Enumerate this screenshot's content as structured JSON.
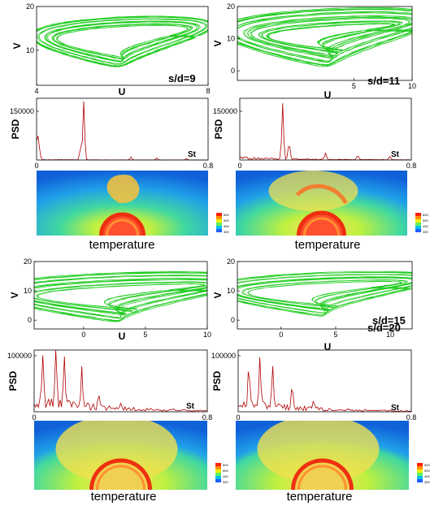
{
  "chart_data": [
    {
      "case": "s/d=9",
      "phase": {
        "type": "line",
        "xlabel": "U",
        "ylabel": "V",
        "xlim": [
          4,
          8
        ],
        "ylim": [
          2,
          20
        ],
        "xticks": [
          "4",
          "8"
        ],
        "yticks": [
          "10",
          "20"
        ],
        "center": [
          6.0,
          12.0
        ],
        "rx": 1.45,
        "ry": 5.0,
        "skew": 0.45,
        "loops": 20,
        "spread": 0.25
      },
      "psd": {
        "type": "line",
        "xlabel": "St",
        "ylabel": "PSD",
        "xlim": [
          0,
          0.8
        ],
        "ylim": [
          0,
          190000
        ],
        "xticks": [
          "0",
          "0.8"
        ],
        "yticks": [
          "150000"
        ],
        "peaks": [
          [
            0.005,
            75000
          ],
          [
            0.22,
            180000
          ],
          [
            0.205,
            40000
          ],
          [
            0.44,
            9000
          ],
          [
            0.56,
            6000
          ],
          [
            0.7,
            4000
          ]
        ],
        "noise": 1200
      },
      "field": {
        "label": "temperature",
        "legend": [
          "600",
          "500",
          "400",
          "300"
        ],
        "hot": 0.35,
        "plume": "narrow"
      }
    },
    {
      "case": "s/d=11",
      "phase": {
        "type": "line",
        "xlabel": "U",
        "ylabel": "V",
        "xlim": [
          -5,
          10
        ],
        "ylim": [
          -3,
          20
        ],
        "xticks": [
          "5",
          "10"
        ],
        "yticks": [
          "0",
          "10",
          "20"
        ],
        "center": [
          3.0,
          10.5
        ],
        "rx": 5.5,
        "ry": 6.8,
        "skew": 0.55,
        "loops": 26,
        "spread": 0.45
      },
      "psd": {
        "type": "line",
        "xlabel": "St",
        "ylabel": "PSD",
        "xlim": [
          0,
          0.8
        ],
        "ylim": [
          0,
          190000
        ],
        "xticks": [
          "0",
          "0.8"
        ],
        "yticks": [
          "150000"
        ],
        "peaks": [
          [
            0.2,
            170000
          ],
          [
            0.23,
            50000
          ],
          [
            0.4,
            20000
          ],
          [
            0.55,
            14000
          ],
          [
            0.7,
            10000
          ]
        ],
        "noise": 7000
      },
      "field": {
        "label": "temperature",
        "legend": [
          "600",
          "500",
          "400",
          "300"
        ],
        "hot": 0.6,
        "plume": "wide"
      }
    },
    {
      "case": "s/d=15",
      "phase": {
        "type": "line",
        "xlabel": "U",
        "ylabel": "V",
        "xlim": [
          -4,
          10
        ],
        "ylim": [
          -3,
          20
        ],
        "xticks": [
          "0",
          "5",
          "10"
        ],
        "yticks": [
          "0",
          "10",
          "20"
        ],
        "center": [
          3.0,
          8.0
        ],
        "rx": 6.3,
        "ry": 6.5,
        "skew": 0.6,
        "loops": 18,
        "spread": 0.4
      },
      "psd": {
        "type": "line",
        "xlabel": "St",
        "ylabel": "PSD",
        "xlim": [
          0,
          0.8
        ],
        "ylim": [
          0,
          110000
        ],
        "xticks": [
          "0",
          "0.8"
        ],
        "yticks": [
          "100000"
        ],
        "peaks": [
          [
            0.04,
            80000
          ],
          [
            0.1,
            100000
          ],
          [
            0.14,
            85000
          ],
          [
            0.22,
            70000
          ],
          [
            0.3,
            25000
          ],
          [
            0.4,
            12000
          ]
        ],
        "noise": 22000
      },
      "field": {
        "label": "temperature",
        "legend": [
          "600",
          "500",
          "400",
          "300"
        ],
        "hot": 0.75,
        "plume": "dome"
      }
    },
    {
      "case": "s/d=20",
      "phase": {
        "type": "line",
        "xlabel": "U",
        "ylabel": "V",
        "xlim": [
          -4,
          12
        ],
        "ylim": [
          -3,
          20
        ],
        "xticks": [
          "0",
          "5",
          "10"
        ],
        "yticks": [
          "0",
          "10",
          "20"
        ],
        "center": [
          4.0,
          9.0
        ],
        "rx": 6.3,
        "ry": 6.0,
        "skew": 0.6,
        "loops": 14,
        "spread": 0.35
      },
      "psd": {
        "type": "line",
        "xlabel": "St",
        "ylabel": "PSD",
        "xlim": [
          0,
          0.8
        ],
        "ylim": [
          0,
          110000
        ],
        "xticks": [
          "0",
          "0.8"
        ],
        "yticks": [
          "100000"
        ],
        "peaks": [
          [
            0.05,
            70000
          ],
          [
            0.1,
            85000
          ],
          [
            0.16,
            70000
          ],
          [
            0.25,
            40000
          ],
          [
            0.35,
            15000
          ]
        ],
        "noise": 17000
      },
      "field": {
        "label": "temperature",
        "legend": [
          "600",
          "500",
          "400",
          "300"
        ],
        "hot": 0.8,
        "plume": "dome"
      }
    }
  ],
  "colors": {
    "phase": "#22cc22",
    "psd": "#b00000",
    "axis": "#000000"
  }
}
